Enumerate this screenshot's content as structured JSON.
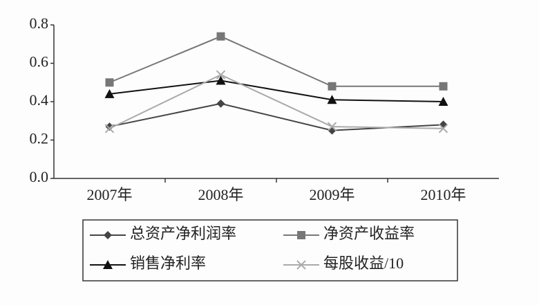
{
  "chart_data": {
    "type": "line",
    "categories": [
      "2007年",
      "2008年",
      "2009年",
      "2010年"
    ],
    "series": [
      {
        "name": "总资产净利润率",
        "color": "#444444",
        "marker": "diamond",
        "values": [
          0.27,
          0.39,
          0.25,
          0.28
        ]
      },
      {
        "name": "净资产收益率",
        "color": "#777777",
        "marker": "square",
        "values": [
          0.5,
          0.74,
          0.48,
          0.48
        ]
      },
      {
        "name": "销售净利率",
        "color": "#111111",
        "marker": "triangle",
        "values": [
          0.44,
          0.51,
          0.41,
          0.4
        ]
      },
      {
        "name": "每股收益/10",
        "color": "#aaaaaa",
        "marker": "x",
        "values": [
          0.26,
          0.54,
          0.27,
          0.26
        ]
      }
    ],
    "ylim": [
      0,
      0.8
    ],
    "yticks": [
      {
        "value": 0,
        "label": "0.0"
      },
      0.2,
      0.4,
      0.6,
      0.8
    ],
    "grid": false
  }
}
